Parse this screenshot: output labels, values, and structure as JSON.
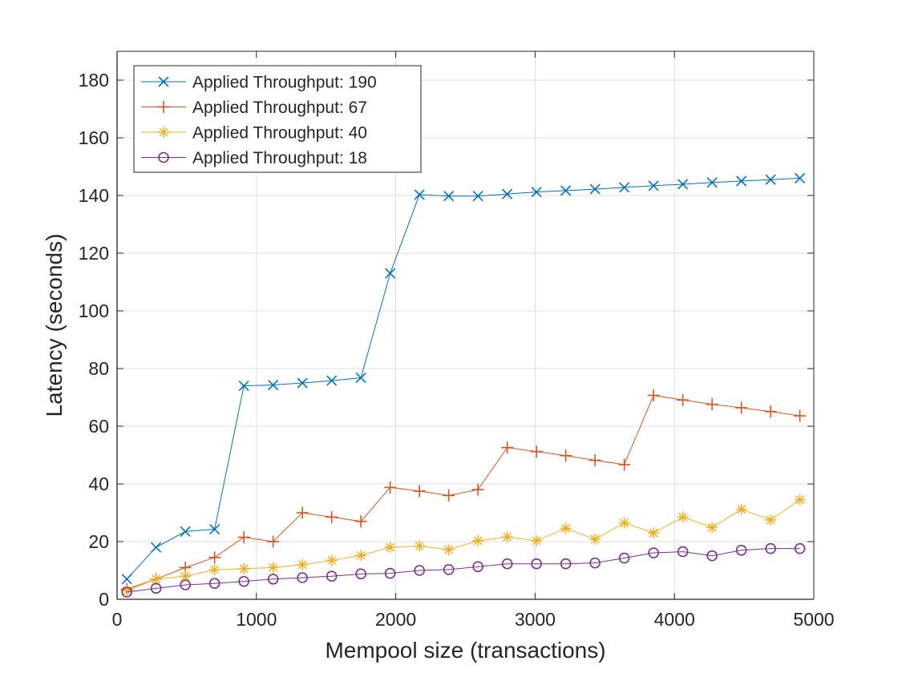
{
  "chart_data": {
    "type": "line",
    "title": "",
    "xlabel": "Mempool size (transactions)",
    "ylabel": "Latency (seconds)",
    "xlim": [
      0,
      5000
    ],
    "ylim": [
      0,
      190
    ],
    "xticks": [
      0,
      1000,
      2000,
      3000,
      4000,
      5000
    ],
    "yticks": [
      0,
      20,
      40,
      60,
      80,
      100,
      120,
      140,
      160,
      180
    ],
    "xtick_labels": [
      "0",
      "1000",
      "2000",
      "3000",
      "4000",
      "5000"
    ],
    "ytick_labels": [
      "0",
      "20",
      "40",
      "60",
      "80",
      "100",
      "120",
      "140",
      "160",
      "180"
    ],
    "grid": true,
    "legend_position": "top-left",
    "x": [
      70,
      280,
      490,
      700,
      910,
      1120,
      1330,
      1540,
      1750,
      1960,
      2170,
      2380,
      2590,
      2800,
      3010,
      3220,
      3430,
      3640,
      3850,
      4060,
      4270,
      4480,
      4690,
      4900
    ],
    "series": [
      {
        "name": "Applied Throughput: 190",
        "color": "#0072BD",
        "marker": "x",
        "values": [
          7,
          18,
          23.5,
          24.3,
          74,
          74.3,
          75,
          75.8,
          76.8,
          113,
          140.3,
          139.8,
          139.8,
          140.5,
          141.2,
          141.7,
          142.2,
          142.8,
          143.4,
          143.9,
          144.5,
          145,
          145.5,
          146
        ]
      },
      {
        "name": "Applied Throughput: 67",
        "color": "#D95319",
        "marker": "+",
        "values": [
          3.5,
          7,
          11,
          14.5,
          21.5,
          20,
          30,
          28.5,
          27,
          38.8,
          37.5,
          36,
          38,
          52.6,
          51.2,
          49.8,
          48.2,
          46.7,
          70.7,
          69.1,
          67.6,
          66.4,
          65.1,
          63.6
        ]
      },
      {
        "name": "Applied Throughput: 40",
        "color": "#EDB120",
        "marker": "*",
        "values": [
          3,
          7,
          8,
          10.2,
          10.6,
          11,
          12,
          13.5,
          15.2,
          18,
          18.5,
          17.2,
          20.3,
          21.6,
          20.3,
          24.6,
          20.8,
          26.5,
          23,
          28.5,
          24.9,
          31.2,
          27.5,
          34.5
        ]
      },
      {
        "name": "Applied Throughput: 18",
        "color": "#7E2F8E",
        "marker": "o",
        "values": [
          2.5,
          3.8,
          5,
          5.5,
          6.2,
          7,
          7.5,
          8,
          8.8,
          9,
          10,
          10.3,
          11.3,
          12.3,
          12.3,
          12.3,
          12.6,
          14.3,
          16.1,
          16.5,
          15.1,
          17,
          17.6,
          17.6
        ]
      }
    ]
  }
}
